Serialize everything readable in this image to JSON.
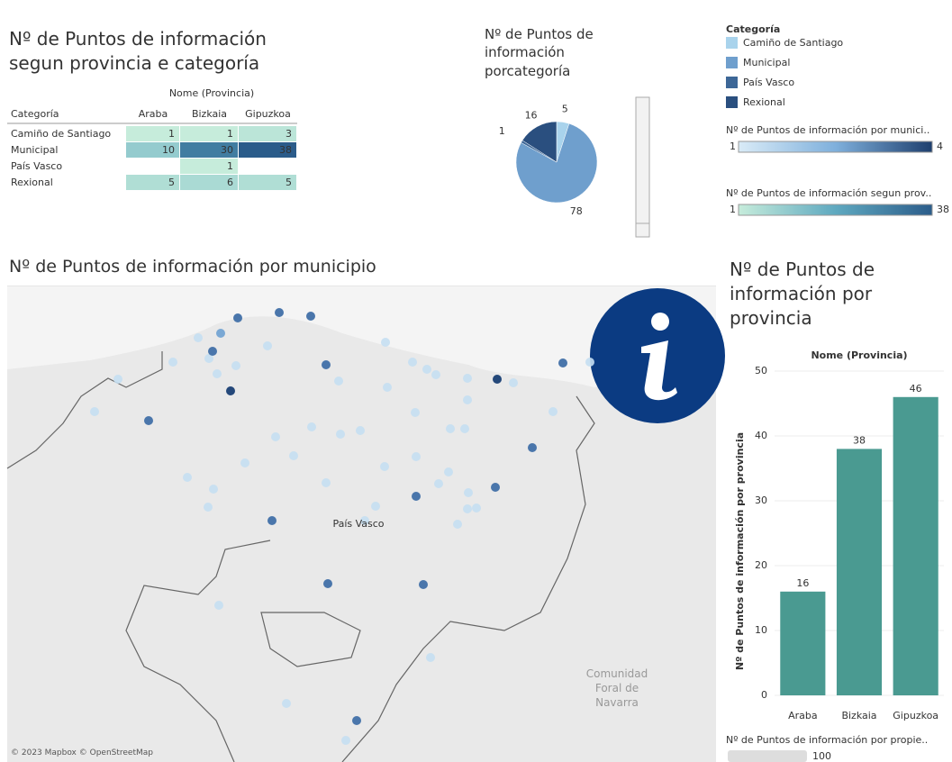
{
  "chart_data": [
    {
      "type": "heatmap",
      "title": "Nº de Puntos de información segun provincia e categoría",
      "column_header": "Nome (Provincia)",
      "row_header": "Categoría",
      "columns": [
        "Araba",
        "Bizkaia",
        "Gipuzkoa"
      ],
      "rows": [
        "Camiño de Santiago",
        "Municipal",
        "País Vasco",
        "Rexional"
      ],
      "values": [
        [
          1,
          1,
          3
        ],
        [
          10,
          30,
          38
        ],
        [
          null,
          1,
          null
        ],
        [
          5,
          6,
          5
        ]
      ]
    },
    {
      "type": "pie",
      "title": "Nº de Puntos de información porcategoría",
      "legend_title": "Categoría",
      "categories": [
        "Camiño de Santiago",
        "Municipal",
        "País Vasco",
        "Rexional"
      ],
      "values": [
        5,
        78,
        1,
        16
      ],
      "colors": [
        "#a9d3ec",
        "#6f9fcd",
        "#3d6797",
        "#2a4f7f"
      ]
    },
    {
      "type": "bar",
      "title": "Nº de Puntos de información por provincia",
      "x_header": "Nome (Provincia)",
      "y_label": "Nº de Puntos de información por provincia",
      "categories": [
        "Araba",
        "Bizkaia",
        "Gipuzkoa"
      ],
      "values": [
        16,
        38,
        46
      ],
      "ylim": [
        0,
        50
      ],
      "yticks": [
        0,
        10,
        20,
        30,
        40,
        50
      ],
      "color": "#4a9a91"
    },
    {
      "type": "map",
      "title": "Nº de Puntos de información por municipio",
      "labels": [
        "País Vasco",
        "Comunidad Foral de Navarra"
      ],
      "attribution": "© 2023 Mapbox © OpenStreetMap"
    }
  ],
  "legends": {
    "municipio": {
      "title": "Nº de Puntos de información por munici..",
      "min": 1,
      "max": 4
    },
    "provincia": {
      "title": "Nº de Puntos de información segun prov..",
      "min": 1,
      "max": 38
    },
    "propie": {
      "title": "Nº de Puntos de información por propie..",
      "value": 100
    }
  }
}
